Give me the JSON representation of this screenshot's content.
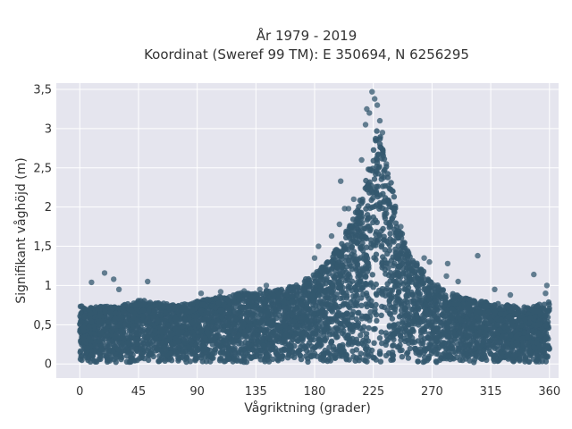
{
  "chart_data": {
    "type": "scatter",
    "title_line1": "År 1979 - 2019",
    "title_line2": "Koordinat (Sweref 99 TM): E 350694, N 6256295",
    "xlabel": "Vågriktning (grader)",
    "ylabel": "Signifikant våghöjd (m)",
    "xlim": [
      -18,
      367
    ],
    "ylim": [
      -0.18,
      3.58
    ],
    "x_ticks": [
      0,
      45,
      90,
      135,
      180,
      225,
      270,
      315,
      360
    ],
    "x_tick_labels": [
      "0",
      "45",
      "90",
      "135",
      "180",
      "225",
      "270",
      "315",
      "360"
    ],
    "y_ticks": [
      0,
      0.5,
      1,
      1.5,
      2,
      2.5,
      3,
      3.5
    ],
    "y_tick_labels": [
      "0",
      "0,5",
      "1",
      "1,5",
      "2",
      "2,5",
      "3",
      "3,5"
    ],
    "grid": true,
    "colors": {
      "marker": "#34586f",
      "plot_bg": "#e5e5ee",
      "grid": "#ffffff"
    },
    "envelope": {
      "x": [
        0,
        10,
        20,
        30,
        45,
        60,
        75,
        90,
        105,
        120,
        135,
        150,
        165,
        180,
        190,
        200,
        210,
        215,
        220,
        225,
        228,
        232,
        236,
        240,
        245,
        250,
        260,
        270,
        285,
        300,
        315,
        330,
        345,
        360
      ],
      "y_max": [
        0.75,
        0.72,
        0.74,
        0.74,
        0.82,
        0.78,
        0.75,
        0.8,
        0.85,
        0.9,
        0.92,
        0.95,
        1.0,
        1.15,
        1.3,
        1.55,
        1.9,
        2.1,
        2.4,
        2.8,
        3.0,
        2.85,
        2.6,
        2.2,
        1.8,
        1.5,
        1.25,
        1.05,
        0.9,
        0.82,
        0.78,
        0.75,
        0.72,
        0.8
      ]
    },
    "outliers": [
      {
        "x": 9,
        "y": 1.04
      },
      {
        "x": 19,
        "y": 1.16
      },
      {
        "x": 26,
        "y": 1.08
      },
      {
        "x": 30,
        "y": 0.95
      },
      {
        "x": 52,
        "y": 1.05
      },
      {
        "x": 93,
        "y": 0.9
      },
      {
        "x": 108,
        "y": 0.92
      },
      {
        "x": 126,
        "y": 0.93
      },
      {
        "x": 138,
        "y": 0.95
      },
      {
        "x": 143,
        "y": 1.0
      },
      {
        "x": 180,
        "y": 1.35
      },
      {
        "x": 183,
        "y": 1.5
      },
      {
        "x": 193,
        "y": 1.63
      },
      {
        "x": 199,
        "y": 1.78
      },
      {
        "x": 200,
        "y": 2.33
      },
      {
        "x": 203,
        "y": 1.98
      },
      {
        "x": 206,
        "y": 1.98
      },
      {
        "x": 210,
        "y": 2.1
      },
      {
        "x": 216,
        "y": 2.6
      },
      {
        "x": 219,
        "y": 3.05
      },
      {
        "x": 220,
        "y": 3.25
      },
      {
        "x": 222,
        "y": 3.2
      },
      {
        "x": 224,
        "y": 3.47
      },
      {
        "x": 226,
        "y": 3.38
      },
      {
        "x": 228,
        "y": 3.3
      },
      {
        "x": 230,
        "y": 3.1
      },
      {
        "x": 232,
        "y": 2.95
      },
      {
        "x": 235,
        "y": 2.55
      },
      {
        "x": 240,
        "y": 2.2
      },
      {
        "x": 246,
        "y": 1.75
      },
      {
        "x": 252,
        "y": 1.42
      },
      {
        "x": 258,
        "y": 1.25
      },
      {
        "x": 262,
        "y": 1.18
      },
      {
        "x": 264,
        "y": 1.35
      },
      {
        "x": 268,
        "y": 1.3
      },
      {
        "x": 282,
        "y": 1.28
      },
      {
        "x": 281,
        "y": 1.12
      },
      {
        "x": 290,
        "y": 1.05
      },
      {
        "x": 305,
        "y": 1.38
      },
      {
        "x": 318,
        "y": 0.95
      },
      {
        "x": 330,
        "y": 0.88
      },
      {
        "x": 348,
        "y": 1.14
      },
      {
        "x": 358,
        "y": 1.0
      },
      {
        "x": 357,
        "y": 0.9
      }
    ]
  }
}
